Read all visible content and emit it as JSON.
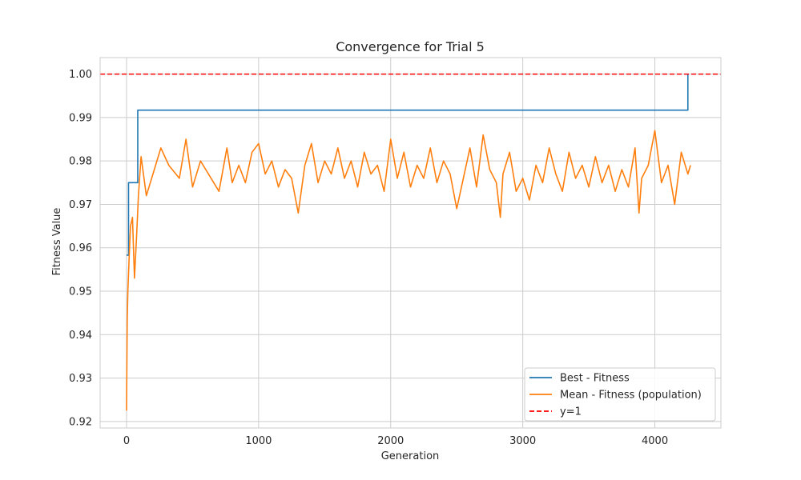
{
  "chart_data": {
    "type": "line",
    "title": "Convergence for Trial 5",
    "xlabel": "Generation",
    "ylabel": "Fitness Value",
    "xlim": [
      -200,
      4500
    ],
    "ylim": [
      0.9185,
      1.0038
    ],
    "x_ticks": [
      0,
      1000,
      2000,
      3000,
      4000
    ],
    "y_ticks": [
      0.92,
      0.93,
      0.94,
      0.95,
      0.96,
      0.97,
      0.98,
      0.99,
      1.0
    ],
    "grid": true,
    "legend_position": "lower-right",
    "series": [
      {
        "name": "Best - Fitness",
        "color": "#1f77b4",
        "step": true,
        "x": [
          0,
          15,
          85,
          4250,
          4250
        ],
        "y": [
          0.9583,
          0.975,
          0.9917,
          0.9917,
          1.0
        ]
      },
      {
        "name": "Mean - Fitness (population)",
        "color": "#ff7f0e",
        "x": [
          0,
          5,
          10,
          20,
          30,
          45,
          60,
          75,
          90,
          110,
          150,
          200,
          260,
          320,
          400,
          450,
          500,
          560,
          620,
          700,
          760,
          800,
          850,
          900,
          950,
          1000,
          1050,
          1100,
          1150,
          1200,
          1250,
          1300,
          1350,
          1400,
          1450,
          1500,
          1550,
          1600,
          1650,
          1700,
          1750,
          1800,
          1850,
          1900,
          1950,
          2000,
          2050,
          2100,
          2150,
          2200,
          2250,
          2300,
          2350,
          2400,
          2450,
          2500,
          2550,
          2600,
          2650,
          2700,
          2750,
          2800,
          2830,
          2850,
          2900,
          2950,
          3000,
          3050,
          3100,
          3150,
          3200,
          3250,
          3300,
          3350,
          3400,
          3450,
          3500,
          3550,
          3600,
          3650,
          3700,
          3750,
          3800,
          3850,
          3880,
          3900,
          3950,
          4000,
          4050,
          4100,
          4150,
          4200,
          4250,
          4270
        ],
        "y": [
          0.9225,
          0.943,
          0.95,
          0.958,
          0.965,
          0.967,
          0.953,
          0.962,
          0.972,
          0.981,
          0.972,
          0.977,
          0.983,
          0.979,
          0.976,
          0.985,
          0.974,
          0.98,
          0.977,
          0.973,
          0.983,
          0.975,
          0.979,
          0.975,
          0.982,
          0.984,
          0.977,
          0.98,
          0.974,
          0.978,
          0.976,
          0.968,
          0.979,
          0.984,
          0.975,
          0.98,
          0.977,
          0.983,
          0.976,
          0.98,
          0.974,
          0.982,
          0.977,
          0.979,
          0.973,
          0.985,
          0.976,
          0.982,
          0.974,
          0.979,
          0.976,
          0.983,
          0.975,
          0.98,
          0.977,
          0.969,
          0.976,
          0.983,
          0.974,
          0.986,
          0.978,
          0.975,
          0.967,
          0.977,
          0.982,
          0.973,
          0.976,
          0.971,
          0.979,
          0.975,
          0.983,
          0.977,
          0.973,
          0.982,
          0.976,
          0.979,
          0.974,
          0.981,
          0.975,
          0.979,
          0.973,
          0.978,
          0.974,
          0.983,
          0.968,
          0.976,
          0.979,
          0.987,
          0.975,
          0.979,
          0.97,
          0.982,
          0.977,
          0.979
        ]
      },
      {
        "name": "y=1",
        "color": "#ff0000",
        "dashed": true,
        "y_const": 1.0
      }
    ]
  }
}
